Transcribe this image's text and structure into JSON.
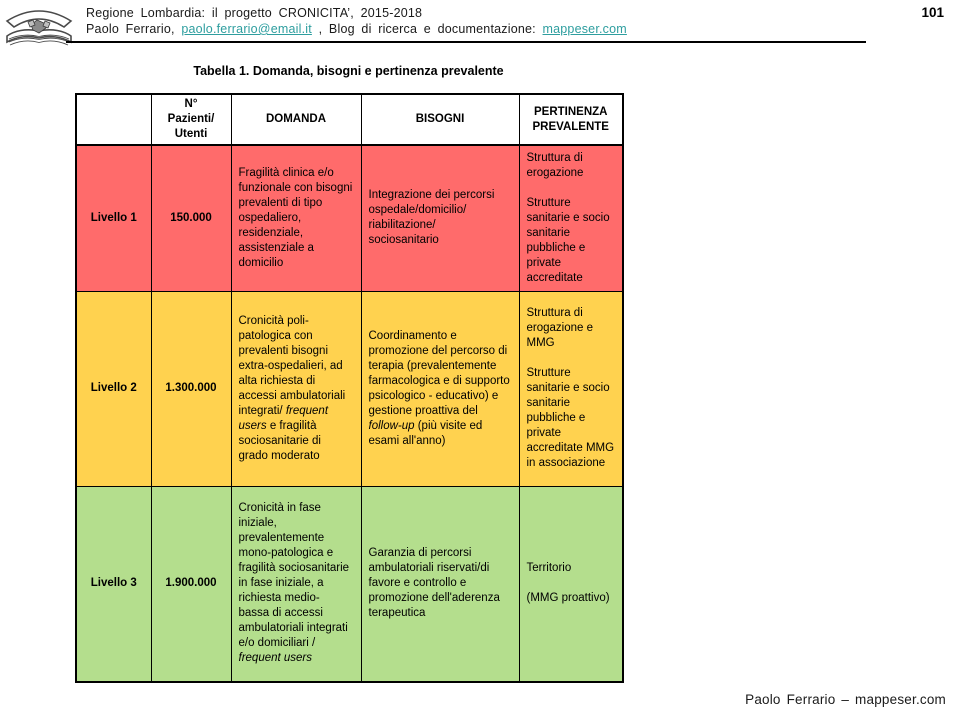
{
  "header": {
    "line1": "Regione Lombardia: il progetto CRONICITA’, 2015-2018",
    "author_prefix": "Paolo Ferrario, ",
    "email_link": "paolo.ferrario@email.it",
    "blog_label": " , Blog di ricerca e documentazione: ",
    "blog_link": "mappeser.com",
    "page_number": "101"
  },
  "table": {
    "title": "Tabella 1. Domanda, bisogni e pertinenza prevalente",
    "columns": [
      "",
      "N°\nPazienti/\nUtenti",
      "DOMANDA",
      "BISOGNI",
      "PERTINENZA PREVALENTE"
    ],
    "colors": {
      "level1": "#FF6B6B",
      "level2": "#FFD24F",
      "level3": "#B4DE8D"
    },
    "rows": [
      {
        "level": "Livello 1",
        "patients": "150.000",
        "color": "#FF6B6B",
        "domanda": [
          [
            {
              "t": "Fragilità clinica e/o funzionale con bisogni prevalenti di tipo ospedaliero, residenziale, assistenziale a domicilio"
            }
          ]
        ],
        "bisogni": [
          [
            {
              "t": "Integrazione dei percorsi\nospedale/domicilio/\nriabilitazione/\nsociosanitario"
            }
          ]
        ],
        "pertinenza": [
          [
            {
              "t": "Struttura di erogazione"
            }
          ],
          [
            {
              "t": "Strutture sanitarie e socio sanitarie pubbliche e private accreditate"
            }
          ]
        ]
      },
      {
        "level": "Livello 2",
        "patients": "1.300.000",
        "color": "#FFD24F",
        "domanda": [
          [
            {
              "t": "Cronicità poli-patologica con prevalenti bisogni extra-ospedalieri, ad alta richiesta di accessi ambulatoriali integrati/ "
            },
            {
              "t": "frequent users",
              "i": true
            },
            {
              "t": " e fragilità sociosanitarie di grado moderato"
            }
          ]
        ],
        "bisogni": [
          [
            {
              "t": "Coordinamento e promozione del percorso di terapia (prevalentemente farmacologica e di supporto psicologico - educativo) e gestione proattiva del "
            },
            {
              "t": "follow-up",
              "i": true
            },
            {
              "t": " (più visite ed esami all'anno)"
            }
          ]
        ],
        "pertinenza": [
          [
            {
              "t": "Struttura di erogazione e MMG"
            }
          ],
          [
            {
              "t": "Strutture sanitarie e socio sanitarie pubbliche e private accreditate MMG in associazione"
            }
          ]
        ]
      },
      {
        "level": "Livello 3",
        "patients": "1.900.000",
        "color": "#B4DE8D",
        "domanda": [
          [
            {
              "t": "Cronicità in fase iniziale, prevalentemente mono-patologica e fragilità sociosanitarie in fase iniziale, a richiesta medio- bassa di accessi ambulatoriali integrati e/o domiciliari / "
            },
            {
              "t": "frequent users",
              "i": true
            }
          ]
        ],
        "bisogni": [
          [
            {
              "t": "Garanzia di percorsi ambulatoriali riservati/di favore e controllo e promozione dell'aderenza terapeutica"
            }
          ]
        ],
        "pertinenza": [
          [
            {
              "t": "Territorio"
            }
          ],
          [
            {
              "t": "(MMG proattivo)"
            }
          ]
        ]
      }
    ]
  },
  "footer": {
    "credit": "Paolo Ferrario – mappeser.com"
  }
}
